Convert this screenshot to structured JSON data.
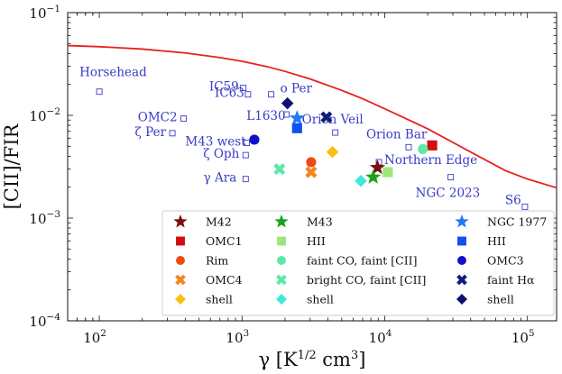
{
  "chart_data": {
    "type": "scatter",
    "xscale": "log",
    "yscale": "log",
    "xlim": [
      60,
      160000
    ],
    "ylim": [
      0.0001,
      0.1
    ],
    "xlabel_main": "γ [K",
    "xlabel_sup": "1/2",
    "xlabel_tail": " cm",
    "xlabel_sup2": "3",
    "xlabel_end": "]",
    "ylabel": "[CII]/FIR",
    "xticks": [
      {
        "value": 100,
        "base": "10",
        "exp": "2"
      },
      {
        "value": 1000,
        "base": "10",
        "exp": "3"
      },
      {
        "value": 10000,
        "base": "10",
        "exp": "4"
      },
      {
        "value": 100000,
        "base": "10",
        "exp": "5"
      }
    ],
    "yticks": [
      {
        "value": 0.0001,
        "base": "10",
        "exp": "−4"
      },
      {
        "value": 0.001,
        "base": "10",
        "exp": "−3"
      },
      {
        "value": 0.01,
        "base": "10",
        "exp": "−2"
      },
      {
        "value": 0.1,
        "base": "10",
        "exp": "−1"
      }
    ],
    "curve": {
      "name": "model",
      "color": "#e8201c",
      "points": [
        [
          60,
          0.0478
        ],
        [
          100,
          0.0466
        ],
        [
          200,
          0.0442
        ],
        [
          400,
          0.0405
        ],
        [
          700,
          0.0365
        ],
        [
          1000,
          0.0336
        ],
        [
          1500,
          0.0298
        ],
        [
          2000,
          0.0268
        ],
        [
          3000,
          0.0226
        ],
        [
          5000,
          0.0175
        ],
        [
          7000,
          0.0145
        ],
        [
          10000,
          0.0116
        ],
        [
          20000,
          0.0074
        ],
        [
          40000,
          0.0044
        ],
        [
          70000,
          0.0029
        ],
        [
          100000,
          0.0024
        ],
        [
          160000,
          0.00197
        ]
      ]
    },
    "literature_sources": [
      {
        "name": "Horsehead",
        "x": 100,
        "y": 0.017
      },
      {
        "name": "OMC2",
        "x": 390,
        "y": 0.0093
      },
      {
        "name": "ζ Per",
        "x": 325,
        "y": 0.0067
      },
      {
        "name": "IC59",
        "x": 1020,
        "y": 0.0185
      },
      {
        "name": "IC63",
        "x": 1100,
        "y": 0.016
      },
      {
        "name": "o Per",
        "x": 1600,
        "y": 0.016
      },
      {
        "name": "L1630",
        "x": 2050,
        "y": 0.0102
      },
      {
        "name": "M43 west",
        "x": 1080,
        "y": 0.0054
      },
      {
        "name": "ζ Oph",
        "x": 1060,
        "y": 0.0041
      },
      {
        "name": "γ Ara",
        "x": 1060,
        "y": 0.0024
      },
      {
        "name": "Orion Veil",
        "x": 4500,
        "y": 0.0068
      },
      {
        "name": "Orion Bar",
        "x": 14700,
        "y": 0.0049
      },
      {
        "name": "Northern Edge",
        "x": 9100,
        "y": 0.0035
      },
      {
        "name": "NGC 2023",
        "x": 29000,
        "y": 0.0025
      },
      {
        "name": "S6",
        "x": 96000,
        "y": 0.00129
      }
    ],
    "series": [
      {
        "name": "M42",
        "marker": "star",
        "color": "#7b1010",
        "points": [
          [
            8900,
            0.0031
          ]
        ]
      },
      {
        "name": "OMC1",
        "marker": "square",
        "color": "#d40e0e",
        "points": [
          [
            21500,
            0.0051
          ]
        ]
      },
      {
        "name": "Rim",
        "marker": "circle",
        "color": "#ef4a14",
        "points": [
          [
            3050,
            0.0035
          ]
        ]
      },
      {
        "name": "OMC4",
        "marker": "x",
        "color": "#f4841c",
        "points": [
          [
            3050,
            0.0028
          ]
        ]
      },
      {
        "name": "shell",
        "marker": "diamond",
        "color": "#f8c111",
        "points": [
          [
            4300,
            0.0044
          ]
        ]
      },
      {
        "name": "M43",
        "marker": "star",
        "color": "#1aa41a",
        "points": [
          [
            8300,
            0.0025
          ]
        ]
      },
      {
        "name": "HII",
        "marker": "square",
        "color": "#9ee67a",
        "points": [
          [
            10500,
            0.0028
          ]
        ]
      },
      {
        "name": "faint CO, faint [CII]",
        "marker": "circle",
        "color": "#5ee8a8",
        "points": [
          [
            18500,
            0.0047
          ]
        ]
      },
      {
        "name": "bright CO, faint [CII]",
        "marker": "x",
        "color": "#5ee8a8",
        "points": [
          [
            1830,
            0.003
          ]
        ]
      },
      {
        "name": "shell",
        "marker": "diamond",
        "color": "#3de8d8",
        "points": [
          [
            6800,
            0.0023
          ]
        ]
      },
      {
        "name": "NGC 1977",
        "marker": "star",
        "color": "#1f7cf4",
        "points": [
          [
            2430,
            0.0094
          ]
        ]
      },
      {
        "name": "HII",
        "marker": "square",
        "color": "#1150f0",
        "points": [
          [
            2430,
            0.0075
          ]
        ]
      },
      {
        "name": "OMC3",
        "marker": "circle",
        "color": "#1010c8",
        "points": [
          [
            1220,
            0.0058
          ]
        ]
      },
      {
        "name": "faint Hα",
        "marker": "x",
        "color": "#0f1e78",
        "points": [
          [
            3900,
            0.0096
          ]
        ]
      },
      {
        "name": "shell",
        "marker": "diamond",
        "color": "#101070",
        "points": [
          [
            2080,
            0.0131
          ]
        ]
      }
    ],
    "legend": {
      "placement": "lower-right",
      "columns": [
        [
          {
            "label": "M42",
            "marker": "star",
            "color": "#7b1010"
          },
          {
            "label": "OMC1",
            "marker": "square",
            "color": "#d40e0e"
          },
          {
            "label": "Rim",
            "marker": "circle",
            "color": "#ef4a14"
          },
          {
            "label": "OMC4",
            "marker": "x",
            "color": "#f4841c"
          },
          {
            "label": "shell",
            "marker": "diamond",
            "color": "#f8c111"
          }
        ],
        [
          {
            "label": "M43",
            "marker": "star",
            "color": "#1aa41a"
          },
          {
            "label": "HII",
            "marker": "square",
            "color": "#9ee67a"
          },
          {
            "label": "faint CO, faint [CII]",
            "marker": "circle",
            "color": "#5ee8a8"
          },
          {
            "label": "bright CO, faint [CII]",
            "marker": "x",
            "color": "#5ee8a8"
          },
          {
            "label": "shell",
            "marker": "diamond",
            "color": "#3de8d8"
          }
        ],
        [
          {
            "label": "NGC 1977",
            "marker": "star",
            "color": "#1f7cf4"
          },
          {
            "label": "HII",
            "marker": "square",
            "color": "#1150f0"
          },
          {
            "label": "OMC3",
            "marker": "circle",
            "color": "#1010c8"
          },
          {
            "label": "faint Hα",
            "marker": "x",
            "color": "#0f1e78"
          },
          {
            "label": "shell",
            "marker": "diamond",
            "color": "#101070"
          }
        ]
      ]
    },
    "colors": {
      "annotation": "#3a3ac8",
      "curve": "#e8201c",
      "axis": "#111111"
    }
  }
}
